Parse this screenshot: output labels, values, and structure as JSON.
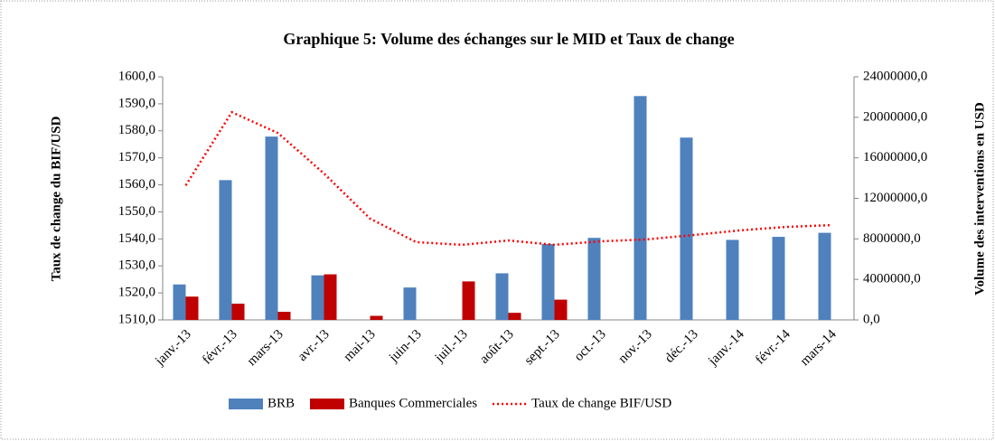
{
  "chart_data": {
    "type": "bar-line",
    "title": "Graphique  5: Volume des échanges sur le MID et Taux de change",
    "y_label": "Taux de change du BIF/USD",
    "y2_label": "Volume des interventions en USD",
    "categories": [
      "janv.-13",
      "févr.-13",
      "mars-13",
      "avr.-13",
      "mai-13",
      "juin-13",
      "juil.-13",
      "août-13",
      "sept.-13",
      "oct.-13",
      "nov.-13",
      "déc.-13",
      "janv.-14",
      "févr.-14",
      "mars-14"
    ],
    "series": [
      {
        "name": "BRB",
        "type": "bar",
        "axis": "y2",
        "color": "#4f81bd",
        "values": [
          3500000,
          13800000,
          18100000,
          4400000,
          0,
          3200000,
          0,
          4600000,
          7500000,
          8100000,
          22100000,
          18000000,
          7900000,
          8200000,
          8600000
        ]
      },
      {
        "name": "Banques Commerciales",
        "type": "bar",
        "axis": "y2",
        "color": "#c00000",
        "values": [
          2300000,
          1600000,
          800000,
          4500000,
          400000,
          0,
          3800000,
          700000,
          2000000,
          0,
          0,
          0,
          0,
          0,
          0
        ]
      },
      {
        "name": "Taux de change BIF/USD",
        "type": "line",
        "axis": "y",
        "color": "#ff0000",
        "dashed": true,
        "values": [
          1559.8,
          1586.9,
          1579.2,
          1564.2,
          1547.5,
          1538.8,
          1537.8,
          1539.4,
          1537.8,
          1539.1,
          1539.8,
          1541.4,
          1543.1,
          1544.4,
          1545.1
        ]
      }
    ],
    "ylim": [
      1510,
      1600
    ],
    "yticks": [
      {
        "value": 1510,
        "label": "1510,0"
      },
      {
        "value": 1520,
        "label": "1520,0"
      },
      {
        "value": 1530,
        "label": "1530,0"
      },
      {
        "value": 1540,
        "label": "1540,0"
      },
      {
        "value": 1550,
        "label": "1550,0"
      },
      {
        "value": 1560,
        "label": "1560,0"
      },
      {
        "value": 1570,
        "label": "1570,0"
      },
      {
        "value": 1580,
        "label": "1580,0"
      },
      {
        "value": 1590,
        "label": "1590,0"
      },
      {
        "value": 1600,
        "label": "1600,0"
      }
    ],
    "y2lim": [
      0,
      24000000
    ],
    "y2ticks": [
      {
        "value": 0,
        "label": "0,0"
      },
      {
        "value": 4000000,
        "label": "4000000,0"
      },
      {
        "value": 8000000,
        "label": "8000000,0"
      },
      {
        "value": 12000000,
        "label": "12000000,0"
      },
      {
        "value": 16000000,
        "label": "16000000,0"
      },
      {
        "value": 20000000,
        "label": "20000000,0"
      },
      {
        "value": 24000000,
        "label": "24000000,0"
      }
    ],
    "legend": "bottom"
  }
}
